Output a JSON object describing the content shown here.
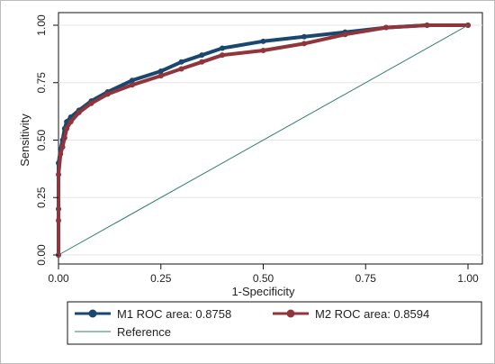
{
  "chart_data": {
    "type": "line",
    "title": "",
    "xlabel": "1-Specificity",
    "ylabel": "Sensitivity",
    "xlim": [
      0,
      1
    ],
    "ylim": [
      0,
      1
    ],
    "x_ticks": [
      "0.00",
      "0.25",
      "0.50",
      "0.75",
      "1.00"
    ],
    "y_ticks": [
      "0.00",
      "0.25",
      "0.50",
      "0.75",
      "1.00"
    ],
    "grid": "horizontal",
    "legend_position": "bottom",
    "series": [
      {
        "name": "M1 ROC area: 0.8758",
        "color": "#1a476f",
        "marker": "circle",
        "x": [
          0,
          0,
          0,
          0.005,
          0.01,
          0.015,
          0.02,
          0.03,
          0.05,
          0.08,
          0.12,
          0.18,
          0.25,
          0.3,
          0.35,
          0.4,
          0.5,
          0.6,
          0.7,
          0.8,
          0.9,
          1.0
        ],
        "y": [
          0,
          0.2,
          0.4,
          0.46,
          0.5,
          0.55,
          0.58,
          0.6,
          0.63,
          0.67,
          0.71,
          0.76,
          0.8,
          0.84,
          0.87,
          0.9,
          0.93,
          0.95,
          0.97,
          0.99,
          1.0,
          1.0
        ]
      },
      {
        "name": "M2 ROC area: 0.8594",
        "color": "#90353b",
        "marker": "circle",
        "x": [
          0,
          0,
          0,
          0.005,
          0.01,
          0.015,
          0.02,
          0.03,
          0.05,
          0.08,
          0.12,
          0.18,
          0.25,
          0.3,
          0.35,
          0.4,
          0.5,
          0.6,
          0.7,
          0.8,
          0.9,
          1.0
        ],
        "y": [
          0,
          0.15,
          0.35,
          0.44,
          0.47,
          0.51,
          0.55,
          0.58,
          0.62,
          0.66,
          0.7,
          0.74,
          0.78,
          0.81,
          0.84,
          0.87,
          0.89,
          0.92,
          0.96,
          0.99,
          1.0,
          1.0
        ]
      },
      {
        "name": "Reference",
        "color": "#2f7d6f",
        "marker": "none",
        "x": [
          0,
          1
        ],
        "y": [
          0,
          1
        ]
      }
    ]
  }
}
